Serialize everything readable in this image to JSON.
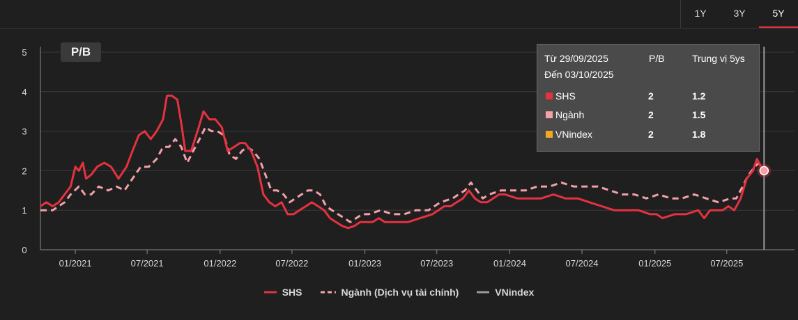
{
  "range_tabs": [
    "1Y",
    "3Y",
    "5Y"
  ],
  "active_tab": "5Y",
  "badge": "P/B",
  "tooltip": {
    "from": "Từ 29/09/2025",
    "to": "Đến 03/10/2025",
    "col_value": "P/B",
    "col_median": "Trung vị 5ys",
    "rows": [
      {
        "name": "SHS",
        "value": "2",
        "median": "1.2",
        "color": "#e5323f"
      },
      {
        "name": "Ngành",
        "value": "2",
        "median": "1.5",
        "color": "#f4a0a8"
      },
      {
        "name": "VNindex",
        "value": "2",
        "median": "1.8",
        "color": "#f5a623"
      }
    ]
  },
  "legend": [
    {
      "name": "SHS",
      "color": "#e5323f",
      "style": "solid"
    },
    {
      "name": "Ngành (Dịch vụ tài chính)",
      "color": "#f4a0a8",
      "style": "dashed"
    },
    {
      "name": "VNindex",
      "color": "#9a9a9a",
      "style": "solid"
    }
  ],
  "chart_data": {
    "type": "line",
    "ylim": [
      0,
      5
    ],
    "yticks": [
      0,
      1,
      2,
      3,
      4,
      5
    ],
    "xlim": [
      "2020-10-05",
      "2025-10-27"
    ],
    "xticks": [
      {
        "date": "2021-01-01",
        "label": "01/2021"
      },
      {
        "date": "2021-07-01",
        "label": "07/2021"
      },
      {
        "date": "2022-01-01",
        "label": "01/2022"
      },
      {
        "date": "2022-07-01",
        "label": "07/2022"
      },
      {
        "date": "2023-01-01",
        "label": "01/2023"
      },
      {
        "date": "2023-07-01",
        "label": "07/2023"
      },
      {
        "date": "2024-01-01",
        "label": "01/2024"
      },
      {
        "date": "2024-07-01",
        "label": "07/2024"
      },
      {
        "date": "2025-01-01",
        "label": "01/2025"
      },
      {
        "date": "2025-07-01",
        "label": "07/2025"
      }
    ],
    "grid": "horizontal",
    "series": [
      {
        "name": "SHS",
        "color": "#e5323f",
        "points": [
          [
            "2020-10-05",
            1.1
          ],
          [
            "2020-10-20",
            1.2
          ],
          [
            "2020-11-05",
            1.1
          ],
          [
            "2020-11-20",
            1.2
          ],
          [
            "2020-12-05",
            1.4
          ],
          [
            "2020-12-20",
            1.6
          ],
          [
            "2021-01-01",
            2.1
          ],
          [
            "2021-01-10",
            2.0
          ],
          [
            "2021-01-20",
            2.2
          ],
          [
            "2021-01-28",
            1.8
          ],
          [
            "2021-02-10",
            1.9
          ],
          [
            "2021-02-25",
            2.1
          ],
          [
            "2021-03-15",
            2.2
          ],
          [
            "2021-04-01",
            2.1
          ],
          [
            "2021-04-20",
            1.8
          ],
          [
            "2021-05-10",
            2.1
          ],
          [
            "2021-05-25",
            2.5
          ],
          [
            "2021-06-10",
            2.9
          ],
          [
            "2021-06-25",
            3.0
          ],
          [
            "2021-07-10",
            2.8
          ],
          [
            "2021-07-25",
            3.0
          ],
          [
            "2021-08-10",
            3.3
          ],
          [
            "2021-08-20",
            3.9
          ],
          [
            "2021-09-01",
            3.9
          ],
          [
            "2021-09-15",
            3.8
          ],
          [
            "2021-09-25",
            3.2
          ],
          [
            "2021-10-05",
            2.5
          ],
          [
            "2021-10-20",
            2.5
          ],
          [
            "2021-11-05",
            3.0
          ],
          [
            "2021-11-20",
            3.5
          ],
          [
            "2021-12-05",
            3.3
          ],
          [
            "2021-12-20",
            3.3
          ],
          [
            "2022-01-05",
            3.1
          ],
          [
            "2022-01-20",
            2.5
          ],
          [
            "2022-02-05",
            2.6
          ],
          [
            "2022-02-20",
            2.7
          ],
          [
            "2022-03-05",
            2.7
          ],
          [
            "2022-03-20",
            2.5
          ],
          [
            "2022-04-05",
            2.1
          ],
          [
            "2022-04-20",
            1.4
          ],
          [
            "2022-05-05",
            1.2
          ],
          [
            "2022-05-20",
            1.1
          ],
          [
            "2022-06-05",
            1.2
          ],
          [
            "2022-06-20",
            0.9
          ],
          [
            "2022-07-05",
            0.9
          ],
          [
            "2022-07-20",
            1.0
          ],
          [
            "2022-08-05",
            1.1
          ],
          [
            "2022-08-20",
            1.2
          ],
          [
            "2022-09-05",
            1.1
          ],
          [
            "2022-09-20",
            1.0
          ],
          [
            "2022-10-05",
            0.8
          ],
          [
            "2022-10-20",
            0.7
          ],
          [
            "2022-11-05",
            0.6
          ],
          [
            "2022-11-20",
            0.55
          ],
          [
            "2022-12-05",
            0.6
          ],
          [
            "2022-12-20",
            0.7
          ],
          [
            "2023-01-05",
            0.7
          ],
          [
            "2023-01-20",
            0.7
          ],
          [
            "2023-02-05",
            0.8
          ],
          [
            "2023-02-20",
            0.7
          ],
          [
            "2023-03-20",
            0.7
          ],
          [
            "2023-04-20",
            0.7
          ],
          [
            "2023-05-20",
            0.8
          ],
          [
            "2023-06-20",
            0.9
          ],
          [
            "2023-07-05",
            1.0
          ],
          [
            "2023-07-20",
            1.1
          ],
          [
            "2023-08-05",
            1.1
          ],
          [
            "2023-08-20",
            1.2
          ],
          [
            "2023-09-05",
            1.3
          ],
          [
            "2023-09-20",
            1.5
          ],
          [
            "2023-10-05",
            1.3
          ],
          [
            "2023-10-20",
            1.2
          ],
          [
            "2023-11-05",
            1.2
          ],
          [
            "2023-11-20",
            1.3
          ],
          [
            "2023-12-05",
            1.4
          ],
          [
            "2023-12-20",
            1.4
          ],
          [
            "2024-01-20",
            1.3
          ],
          [
            "2024-03-20",
            1.3
          ],
          [
            "2024-04-20",
            1.4
          ],
          [
            "2024-05-20",
            1.3
          ],
          [
            "2024-06-20",
            1.3
          ],
          [
            "2024-07-20",
            1.2
          ],
          [
            "2024-08-20",
            1.1
          ],
          [
            "2024-09-20",
            1.0
          ],
          [
            "2024-10-20",
            1.0
          ],
          [
            "2024-11-20",
            1.0
          ],
          [
            "2024-12-20",
            0.9
          ],
          [
            "2025-01-05",
            0.9
          ],
          [
            "2025-01-20",
            0.8
          ],
          [
            "2025-02-20",
            0.9
          ],
          [
            "2025-03-20",
            0.9
          ],
          [
            "2025-04-05",
            0.95
          ],
          [
            "2025-04-20",
            1.0
          ],
          [
            "2025-05-05",
            0.8
          ],
          [
            "2025-05-20",
            1.0
          ],
          [
            "2025-06-20",
            1.0
          ],
          [
            "2025-07-05",
            1.1
          ],
          [
            "2025-07-20",
            1.0
          ],
          [
            "2025-08-05",
            1.3
          ],
          [
            "2025-08-20",
            1.8
          ],
          [
            "2025-09-05",
            2.0
          ],
          [
            "2025-09-15",
            2.3
          ],
          [
            "2025-09-25",
            2.1
          ],
          [
            "2025-10-03",
            2.0
          ]
        ]
      },
      {
        "name": "Ngành (Dịch vụ tài chính)",
        "color": "#f4a0a8",
        "points": [
          [
            "2020-10-05",
            1.0
          ],
          [
            "2020-10-20",
            1.0
          ],
          [
            "2020-11-05",
            1.0
          ],
          [
            "2020-11-20",
            1.1
          ],
          [
            "2020-12-05",
            1.2
          ],
          [
            "2020-12-20",
            1.4
          ],
          [
            "2021-01-10",
            1.6
          ],
          [
            "2021-01-25",
            1.4
          ],
          [
            "2021-02-10",
            1.4
          ],
          [
            "2021-03-01",
            1.6
          ],
          [
            "2021-03-25",
            1.5
          ],
          [
            "2021-04-15",
            1.6
          ],
          [
            "2021-05-05",
            1.5
          ],
          [
            "2021-05-25",
            1.8
          ],
          [
            "2021-06-15",
            2.1
          ],
          [
            "2021-07-05",
            2.1
          ],
          [
            "2021-07-25",
            2.3
          ],
          [
            "2021-08-10",
            2.6
          ],
          [
            "2021-08-25",
            2.6
          ],
          [
            "2021-09-10",
            2.8
          ],
          [
            "2021-09-25",
            2.6
          ],
          [
            "2021-10-10",
            2.2
          ],
          [
            "2021-10-25",
            2.5
          ],
          [
            "2021-11-10",
            2.8
          ],
          [
            "2021-11-25",
            3.1
          ],
          [
            "2021-12-10",
            3.0
          ],
          [
            "2021-12-25",
            3.0
          ],
          [
            "2022-01-10",
            2.9
          ],
          [
            "2022-01-25",
            2.4
          ],
          [
            "2022-02-10",
            2.3
          ],
          [
            "2022-02-25",
            2.5
          ],
          [
            "2022-03-10",
            2.6
          ],
          [
            "2022-03-25",
            2.5
          ],
          [
            "2022-04-10",
            2.3
          ],
          [
            "2022-04-25",
            1.9
          ],
          [
            "2022-05-10",
            1.5
          ],
          [
            "2022-05-25",
            1.5
          ],
          [
            "2022-06-10",
            1.4
          ],
          [
            "2022-06-25",
            1.2
          ],
          [
            "2022-07-10",
            1.3
          ],
          [
            "2022-07-25",
            1.4
          ],
          [
            "2022-08-10",
            1.5
          ],
          [
            "2022-08-25",
            1.5
          ],
          [
            "2022-09-10",
            1.4
          ],
          [
            "2022-09-25",
            1.1
          ],
          [
            "2022-10-10",
            1.0
          ],
          [
            "2022-10-25",
            0.9
          ],
          [
            "2022-11-10",
            0.8
          ],
          [
            "2022-11-25",
            0.7
          ],
          [
            "2022-12-10",
            0.8
          ],
          [
            "2022-12-25",
            0.9
          ],
          [
            "2023-01-10",
            0.9
          ],
          [
            "2023-02-10",
            1.0
          ],
          [
            "2023-03-10",
            0.9
          ],
          [
            "2023-04-10",
            0.9
          ],
          [
            "2023-05-10",
            1.0
          ],
          [
            "2023-06-10",
            1.0
          ],
          [
            "2023-07-10",
            1.2
          ],
          [
            "2023-08-10",
            1.3
          ],
          [
            "2023-08-25",
            1.4
          ],
          [
            "2023-09-10",
            1.5
          ],
          [
            "2023-09-25",
            1.7
          ],
          [
            "2023-10-10",
            1.5
          ],
          [
            "2023-10-25",
            1.3
          ],
          [
            "2023-11-10",
            1.4
          ],
          [
            "2023-12-10",
            1.5
          ],
          [
            "2024-01-10",
            1.5
          ],
          [
            "2024-02-10",
            1.5
          ],
          [
            "2024-03-10",
            1.6
          ],
          [
            "2024-04-10",
            1.6
          ],
          [
            "2024-05-10",
            1.7
          ],
          [
            "2024-06-10",
            1.6
          ],
          [
            "2024-07-10",
            1.6
          ],
          [
            "2024-08-10",
            1.6
          ],
          [
            "2024-09-10",
            1.5
          ],
          [
            "2024-10-10",
            1.4
          ],
          [
            "2024-11-10",
            1.4
          ],
          [
            "2024-12-10",
            1.3
          ],
          [
            "2025-01-10",
            1.4
          ],
          [
            "2025-02-10",
            1.3
          ],
          [
            "2025-03-10",
            1.3
          ],
          [
            "2025-04-10",
            1.4
          ],
          [
            "2025-05-10",
            1.3
          ],
          [
            "2025-06-10",
            1.2
          ],
          [
            "2025-07-10",
            1.3
          ],
          [
            "2025-07-25",
            1.3
          ],
          [
            "2025-08-10",
            1.6
          ],
          [
            "2025-08-25",
            1.9
          ],
          [
            "2025-09-10",
            2.1
          ],
          [
            "2025-09-20",
            2.2
          ],
          [
            "2025-10-03",
            2.0
          ]
        ]
      },
      {
        "name": "VNindex",
        "color": "#9a9a9a",
        "points": []
      }
    ]
  }
}
